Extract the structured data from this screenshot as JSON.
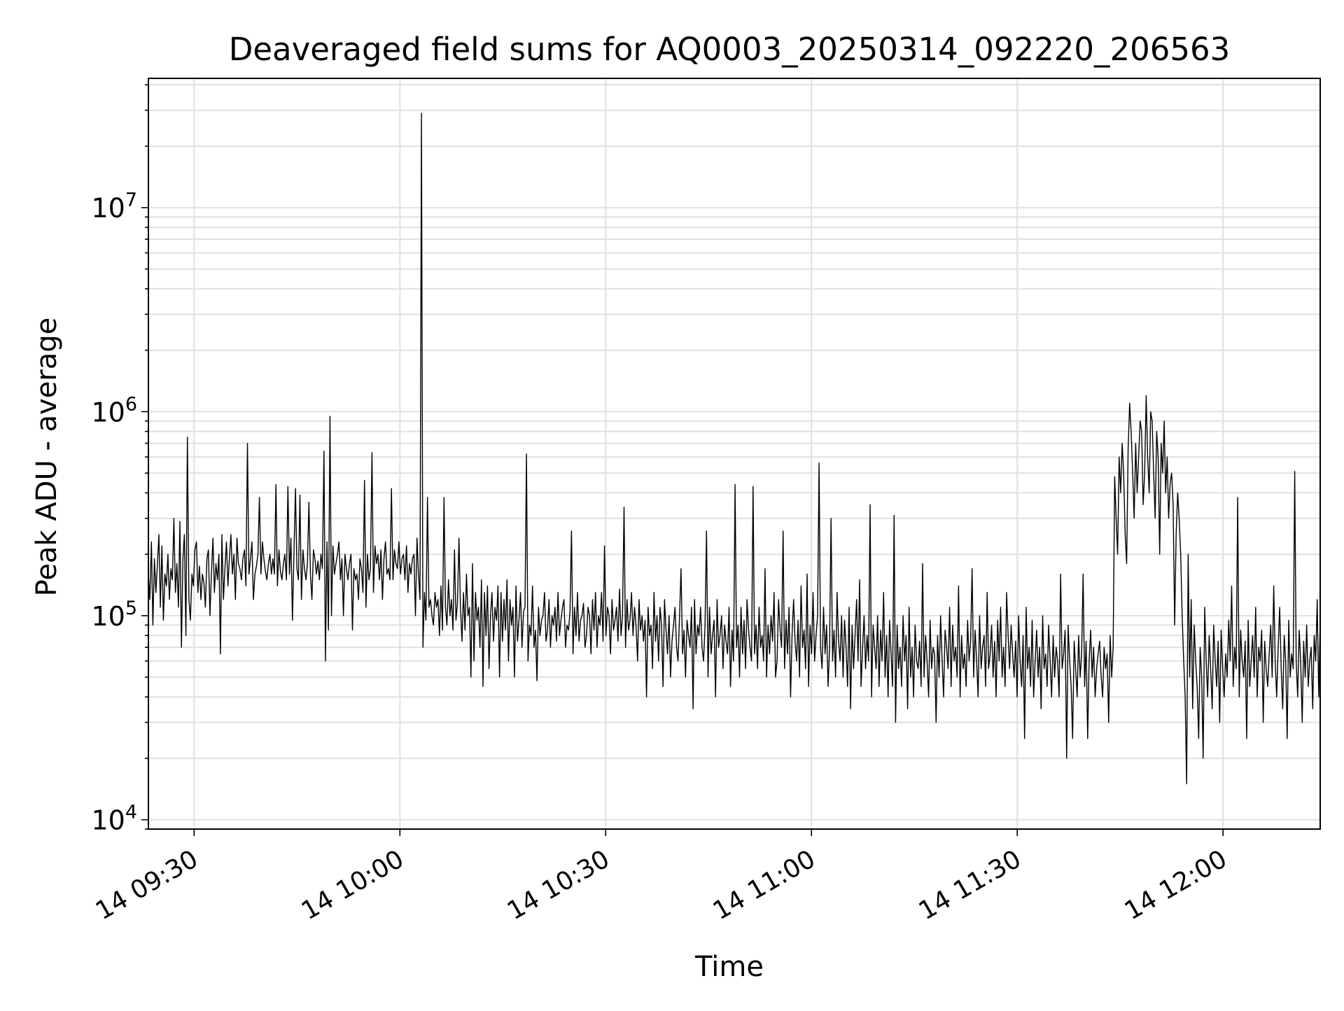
{
  "chart_data": {
    "type": "line",
    "title": "Deaveraged field sums for AQ0003_20250314_092220_206563",
    "xlabel": "Time",
    "ylabel": "Peak ADU - average",
    "yscale": "log",
    "ylim": [
      9000,
      43000000
    ],
    "xlim": [
      "2025-03-14 09:23:20",
      "2025-03-14 12:14:10"
    ],
    "grid": true,
    "line_color": "#000000",
    "grid_color": "#e0e0e0",
    "x_ticks": [
      {
        "value": "2025-03-14 09:30",
        "label": "14 09:30"
      },
      {
        "value": "2025-03-14 10:00",
        "label": "14 10:00"
      },
      {
        "value": "2025-03-14 10:30",
        "label": "14 10:30"
      },
      {
        "value": "2025-03-14 11:00",
        "label": "14 11:00"
      },
      {
        "value": "2025-03-14 11:30",
        "label": "14 11:30"
      },
      {
        "value": "2025-03-14 12:00",
        "label": "14 12:00"
      }
    ],
    "y_ticks": [
      {
        "value": 10000,
        "base": "10",
        "exp": "4"
      },
      {
        "value": 100000,
        "base": "10",
        "exp": "5"
      },
      {
        "value": 1000000,
        "base": "10",
        "exp": "6"
      },
      {
        "value": 10000000,
        "base": "10",
        "exp": "7"
      }
    ],
    "series": [
      {
        "x_start": "2025-03-14 09:23:20",
        "x_end": "2025-03-14 12:14:10",
        "values": [
          160000,
          120000,
          230000,
          90000,
          190000,
          130000,
          180000,
          250000,
          110000,
          220000,
          95000,
          160000,
          140000,
          200000,
          120000,
          170000,
          150000,
          300000,
          130000,
          180000,
          110000,
          290000,
          70000,
          190000,
          250000,
          80000,
          750000,
          120000,
          95000,
          160000,
          140000,
          210000,
          230000,
          130000,
          175000,
          120000,
          160000,
          145000,
          110000,
          190000,
          210000,
          100000,
          160000,
          240000,
          130000,
          180000,
          150000,
          200000,
          65000,
          250000,
          120000,
          170000,
          230000,
          140000,
          190000,
          250000,
          160000,
          200000,
          120000,
          240000,
          180000,
          170000,
          150000,
          190000,
          210000,
          140000,
          700000,
          160000,
          190000,
          230000,
          120000,
          160000,
          175000,
          200000,
          380000,
          160000,
          230000,
          190000,
          165000,
          150000,
          180000,
          200000,
          160000,
          190000,
          160000,
          440000,
          140000,
          210000,
          165000,
          150000,
          180000,
          200000,
          150000,
          430000,
          160000,
          240000,
          95000,
          200000,
          420000,
          170000,
          150000,
          390000,
          120000,
          210000,
          170000,
          150000,
          180000,
          360000,
          160000,
          120000,
          210000,
          190000,
          160000,
          185000,
          150000,
          200000,
          170000,
          640000,
          60000,
          230000,
          85000,
          950000,
          100000,
          220000,
          160000,
          180000,
          200000,
          230000,
          150000,
          190000,
          100000,
          200000,
          170000,
          150000,
          180000,
          200000,
          85000,
          170000,
          150000,
          160000,
          120000,
          190000,
          170000,
          130000,
          460000,
          110000,
          200000,
          150000,
          170000,
          630000,
          130000,
          220000,
          180000,
          200000,
          150000,
          210000,
          120000,
          190000,
          230000,
          160000,
          170000,
          150000,
          420000,
          150000,
          210000,
          180000,
          170000,
          230000,
          160000,
          190000,
          200000,
          150000,
          220000,
          130000,
          180000,
          160000,
          190000,
          200000,
          100000,
          240000,
          160000,
          120000,
          29000000,
          70000,
          130000,
          95000,
          380000,
          110000,
          120000,
          100000,
          90000,
          130000,
          110000,
          120000,
          80000,
          140000,
          85000,
          380000,
          110000,
          90000,
          150000,
          100000,
          120000,
          85000,
          210000,
          95000,
          115000,
          240000,
          110000,
          75000,
          130000,
          85000,
          160000,
          100000,
          110000,
          50000,
          180000,
          60000,
          130000,
          95000,
          110000,
          70000,
          150000,
          45000,
          130000,
          80000,
          140000,
          55000,
          100000,
          130000,
          75000,
          110000,
          95000,
          140000,
          50000,
          130000,
          75000,
          120000,
          85000,
          150000,
          60000,
          120000,
          90000,
          110000,
          50000,
          140000,
          75000,
          95000,
          130000,
          70000,
          105000,
          110000,
          620000,
          60000,
          90000,
          80000,
          140000,
          70000,
          85000,
          48000,
          110000,
          80000,
          95000,
          100000,
          130000,
          75000,
          85000,
          120000,
          70000,
          100000,
          90000,
          110000,
          75000,
          130000,
          80000,
          95000,
          110000,
          120000,
          70000,
          90000,
          85000,
          105000,
          260000,
          65000,
          110000,
          80000,
          130000,
          75000,
          95000,
          100000,
          115000,
          70000,
          80000,
          110000,
          100000,
          65000,
          120000,
          85000,
          130000,
          70000,
          100000,
          90000,
          130000,
          75000,
          220000,
          80000,
          110000,
          100000,
          65000,
          120000,
          85000,
          95000,
          110000,
          75000,
          135000,
          80000,
          100000,
          340000,
          70000,
          120000,
          85000,
          95000,
          130000,
          80000,
          110000,
          90000,
          60000,
          120000,
          85000,
          100000,
          75000,
          95000,
          40000,
          110000,
          80000,
          90000,
          55000,
          130000,
          75000,
          100000,
          60000,
          110000,
          90000,
          45000,
          120000,
          85000,
          65000,
          100000,
          50000,
          75000,
          90000,
          110000,
          70000,
          60000,
          100000,
          170000,
          65000,
          85000,
          50000,
          95000,
          80000,
          70000,
          110000,
          35000,
          120000,
          65000,
          90000,
          80000,
          110000,
          70000,
          60000,
          90000,
          260000,
          50000,
          110000,
          65000,
          80000,
          95000,
          40000,
          120000,
          70000,
          80000,
          100000,
          55000,
          90000,
          75000,
          65000,
          110000,
          45000,
          85000,
          60000,
          440000,
          70000,
          90000,
          50000,
          110000,
          65000,
          95000,
          55000,
          120000,
          85000,
          70000,
          60000,
          430000,
          65000,
          90000,
          55000,
          110000,
          70000,
          80000,
          60000,
          170000,
          50000,
          90000,
          65000,
          100000,
          75000,
          130000,
          50000,
          60000,
          120000,
          85000,
          70000,
          260000,
          55000,
          95000,
          65000,
          110000,
          40000,
          80000,
          120000,
          75000,
          60000,
          95000,
          50000,
          140000,
          70000,
          85000,
          55000,
          160000,
          45000,
          90000,
          65000,
          130000,
          60000,
          80000,
          100000,
          560000,
          70000,
          55000,
          110000,
          65000,
          90000,
          45000,
          70000,
          300000,
          60000,
          85000,
          50000,
          130000,
          75000,
          60000,
          100000,
          50000,
          95000,
          70000,
          45000,
          110000,
          35000,
          90000,
          55000,
          80000,
          120000,
          60000,
          150000,
          45000,
          70000,
          100000,
          55000,
          80000,
          60000,
          350000,
          40000,
          90000,
          70000,
          55000,
          100000,
          45000,
          85000,
          60000,
          130000,
          50000,
          80000,
          40000,
          95000,
          65000,
          45000,
          310000,
          30000,
          90000,
          55000,
          70000,
          45000,
          100000,
          60000,
          80000,
          35000,
          110000,
          50000,
          70000,
          40000,
          90000,
          60000,
          55000,
          75000,
          45000,
          180000,
          50000,
          80000,
          60000,
          40000,
          95000,
          55000,
          70000,
          65000,
          30000,
          80000,
          50000,
          100000,
          60000,
          40000,
          85000,
          70000,
          55000,
          110000,
          45000,
          90000,
          60000,
          70000,
          50000,
          140000,
          40000,
          80000,
          55000,
          65000,
          45000,
          95000,
          60000,
          75000,
          170000,
          50000,
          85000,
          60000,
          40000,
          100000,
          55000,
          70000,
          80000,
          45000,
          130000,
          55000,
          65000,
          90000,
          50000,
          75000,
          40000,
          95000,
          60000,
          110000,
          50000,
          70000,
          45000,
          130000,
          80000,
          55000,
          90000,
          65000,
          50000,
          75000,
          40000,
          100000,
          60000,
          45000,
          80000,
          25000,
          110000,
          55000,
          70000,
          45000,
          95000,
          40000,
          60000,
          85000,
          50000,
          70000,
          35000,
          100000,
          55000,
          65000,
          45000,
          90000,
          60000,
          40000,
          80000,
          50000,
          70000,
          60000,
          40000,
          160000,
          55000,
          65000,
          85000,
          20000,
          90000,
          60000,
          45000,
          25000,
          75000,
          55000,
          40000,
          80000,
          50000,
          65000,
          160000,
          45000,
          75000,
          25000,
          60000,
          85000,
          50000,
          70000,
          40000,
          55000,
          65000,
          75000,
          50000,
          40000,
          70000,
          55000,
          65000,
          30000,
          80000,
          50000,
          70000,
          480000,
          300000,
          200000,
          600000,
          400000,
          700000,
          500000,
          250000,
          180000,
          650000,
          1100000,
          800000,
          500000,
          300000,
          700000,
          400000,
          600000,
          900000,
          800000,
          350000,
          500000,
          1200000,
          600000,
          400000,
          1000000,
          900000,
          500000,
          300000,
          800000,
          600000,
          200000,
          700000,
          500000,
          900000,
          400000,
          600000,
          300000,
          450000,
          500000,
          350000,
          90000,
          250000,
          400000,
          300000,
          200000,
          100000,
          60000,
          40000,
          15000,
          200000,
          50000,
          120000,
          35000,
          90000,
          60000,
          45000,
          25000,
          70000,
          50000,
          20000,
          110000,
          60000,
          40000,
          80000,
          55000,
          35000,
          90000,
          60000,
          45000,
          75000,
          30000,
          85000,
          55000,
          40000,
          65000,
          50000,
          95000,
          60000,
          140000,
          45000,
          70000,
          55000,
          380000,
          40000,
          85000,
          60000,
          50000,
          75000,
          25000,
          95000,
          45000,
          60000,
          80000,
          50000,
          110000,
          40000,
          70000,
          60000,
          85000,
          30000,
          75000,
          55000,
          45000,
          65000,
          90000,
          50000,
          140000,
          60000,
          40000,
          70000,
          110000,
          55000,
          35000,
          80000,
          60000,
          25000,
          95000,
          50000,
          65000,
          55000,
          510000,
          60000,
          40000,
          85000,
          60000,
          30000,
          75000,
          50000,
          90000,
          45000,
          60000,
          70000,
          35000,
          80000,
          60000,
          120000,
          40000,
          95000
        ]
      }
    ]
  }
}
